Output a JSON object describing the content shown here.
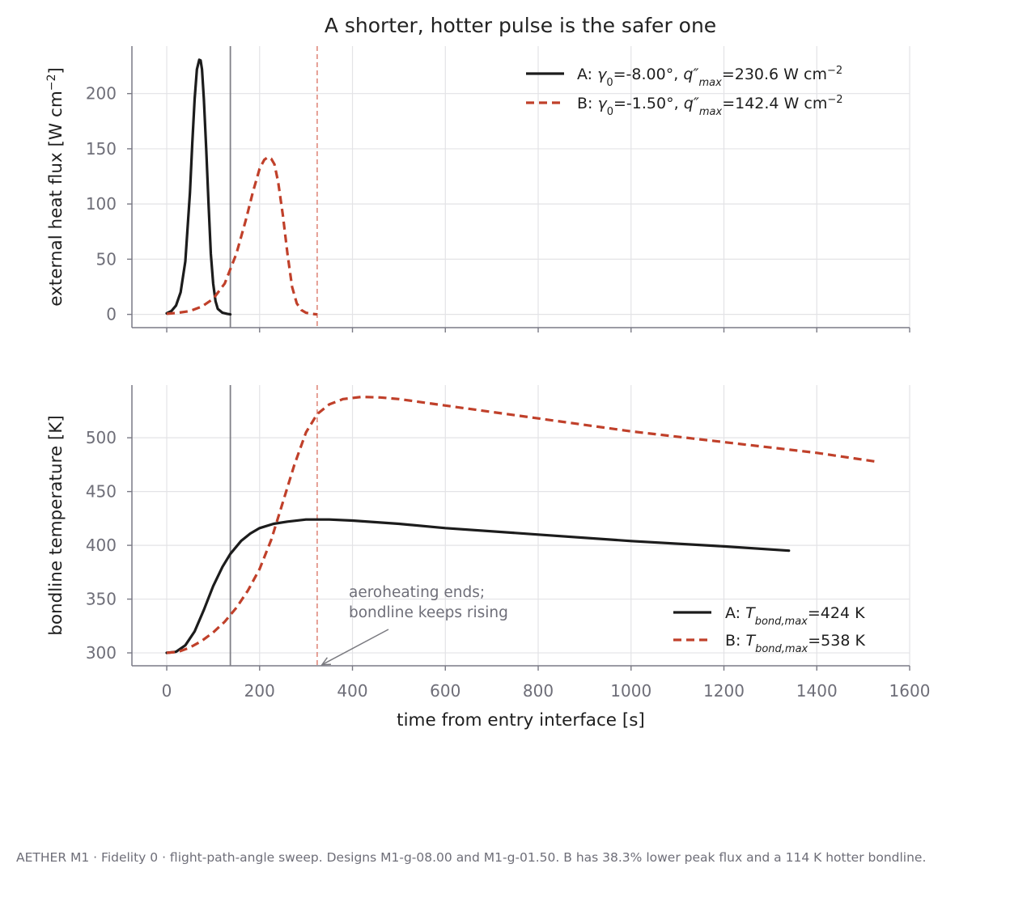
{
  "title": "A shorter, hotter pulse is the safer one",
  "caption": "AETHER M1 · Fidelity 0 · flight-path-angle sweep. Designs M1-g-08.00 and M1-g-01.50. B has 38.3% lower peak flux and a 114 K hotter bondline.",
  "colors": {
    "A": "#1c1c1c",
    "B": "#c0402a",
    "grid": "#e3e3e6",
    "axis": "#7a7a85",
    "endA": "#808087",
    "endB": "#e08a7e"
  },
  "chart_data": [
    {
      "type": "line",
      "ylabel": "external heat flux  [W cm$^{-2}$]",
      "ylabel_parts": {
        "main": "external heat flux  [W cm",
        "sup": "−2",
        "end": "]"
      },
      "xlim": [
        -75,
        1600
      ],
      "ylim": [
        -12,
        243
      ],
      "yticks": [
        "0",
        "50",
        "100",
        "150",
        "200"
      ],
      "grid": true,
      "legend_position": "top-right",
      "aeroheating_end": {
        "A": 137,
        "B": 324
      },
      "series": [
        {
          "name": "A: γ0=-8.00°, q″max=230.6 W cm−2",
          "legend": {
            "pre": "A: ",
            "gamma": "γ",
            "gsub": "0",
            "mid1": "=-8.00°, ",
            "q": "q″",
            "qsub": "max",
            "mid2": "=230.6 W cm",
            "sup": "−2"
          },
          "style": "solid",
          "x": [
            0,
            10,
            20,
            30,
            40,
            50,
            55,
            60,
            65,
            70,
            73,
            76,
            80,
            85,
            90,
            95,
            100,
            105,
            110,
            120,
            130,
            137
          ],
          "y": [
            1,
            3,
            8,
            20,
            48,
            110,
            155,
            195,
            222,
            230.6,
            230,
            222,
            195,
            150,
            100,
            55,
            28,
            12,
            5,
            1.5,
            0.5,
            0
          ]
        },
        {
          "name": "B: γ0=-1.50°, q″max=142.4 W cm−2",
          "legend": {
            "pre": "B: ",
            "gamma": "γ",
            "gsub": "0",
            "mid1": "=-1.50°, ",
            "q": "q″",
            "qsub": "max",
            "mid2": "=142.4 W cm",
            "sup": "−2"
          },
          "style": "dashed",
          "x": [
            0,
            25,
            50,
            75,
            100,
            125,
            150,
            170,
            185,
            200,
            210,
            218,
            225,
            232,
            240,
            250,
            260,
            270,
            280,
            290,
            300,
            310,
            324
          ],
          "y": [
            0.5,
            1.5,
            3,
            7,
            14,
            28,
            55,
            85,
            110,
            132,
            140,
            142.4,
            141,
            136,
            120,
            90,
            55,
            25,
            10,
            4,
            1.5,
            0.5,
            0
          ]
        }
      ]
    },
    {
      "type": "line",
      "xlabel": "time from entry interface  [s]",
      "ylabel": "bondline temperature  [K]",
      "xlim": [
        -75,
        1600
      ],
      "ylim": [
        288,
        549
      ],
      "xticks": [
        "0",
        "200",
        "400",
        "600",
        "800",
        "1000",
        "1200",
        "1400",
        "1600"
      ],
      "yticks": [
        "300",
        "350",
        "400",
        "450",
        "500"
      ],
      "grid": true,
      "legend_position": "lower-right",
      "aeroheating_end": {
        "A": 137,
        "B": 324
      },
      "annotation": {
        "line1": "aeroheating ends;",
        "line2": "bondline keeps rising",
        "arrow_to_x": 324,
        "arrow_to_y": 289
      },
      "series": [
        {
          "name": "A: Tbond,max=424 K",
          "legend": {
            "pre": "A: ",
            "t": "T",
            "sub": "bond,max",
            "post": "=424 K"
          },
          "style": "solid",
          "x": [
            0,
            20,
            40,
            60,
            80,
            100,
            120,
            137,
            160,
            180,
            200,
            230,
            260,
            300,
            350,
            400,
            500,
            600,
            800,
            1000,
            1200,
            1340
          ],
          "y": [
            300,
            301,
            307,
            320,
            340,
            362,
            380,
            392,
            404,
            411,
            416,
            420,
            422,
            424,
            424,
            423,
            420,
            416,
            410,
            404,
            399,
            395
          ]
        },
        {
          "name": "B: Tbond,max=538 K",
          "legend": {
            "pre": "B: ",
            "t": "T",
            "sub": "bond,max",
            "post": "=538 K"
          },
          "style": "dashed",
          "x": [
            0,
            25,
            50,
            75,
            100,
            125,
            150,
            175,
            200,
            225,
            250,
            275,
            300,
            324,
            350,
            380,
            420,
            460,
            500,
            600,
            800,
            1000,
            1200,
            1400,
            1525
          ],
          "y": [
            300,
            301,
            305,
            311,
            319,
            329,
            342,
            358,
            378,
            405,
            440,
            475,
            505,
            522,
            531,
            536,
            538,
            537.5,
            536,
            530,
            518,
            506,
            496,
            486,
            478
          ]
        }
      ]
    }
  ]
}
